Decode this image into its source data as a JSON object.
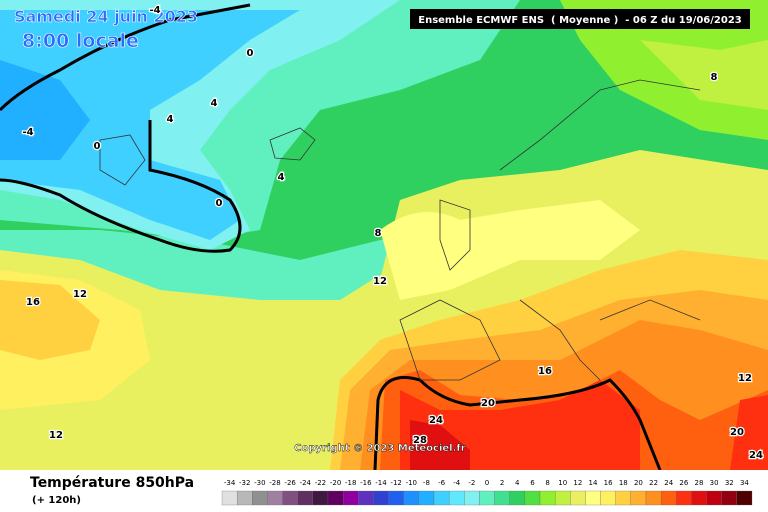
{
  "header": {
    "date": "Samedi 24 juin 2023",
    "time": "8:00 locale",
    "model": "Ensemble ECMWF ENS  ( Moyenne )  - 06 Z du 19/06/2023"
  },
  "copyright": "Copyright © 2023 Meteociel.fr",
  "footer": {
    "title": "Température 850hPa",
    "lead": "(+ 120h)"
  },
  "contour_labels": [
    -4,
    -4,
    0,
    0,
    0,
    4,
    4,
    4,
    8,
    8,
    12,
    12,
    12,
    12,
    16,
    16,
    20,
    20,
    24,
    24,
    28
  ],
  "legend": {
    "ticks": [
      -34,
      -32,
      -30,
      -28,
      -26,
      -24,
      -22,
      -20,
      -18,
      -16,
      -14,
      -12,
      -10,
      -8,
      -6,
      -4,
      -2,
      0,
      2,
      4,
      6,
      8,
      10,
      12,
      14,
      16,
      18,
      20,
      22,
      24,
      26,
      28,
      30,
      32,
      34
    ],
    "colors": [
      "#e0e0e0",
      "#b8b8b8",
      "#909090",
      "#a080a0",
      "#805080",
      "#603060",
      "#401840",
      "#600060",
      "#9000a0",
      "#6030c0",
      "#3040d0",
      "#2060f0",
      "#2090ff",
      "#20b0ff",
      "#40d0ff",
      "#60e8ff",
      "#80f0f0",
      "#60f0c0",
      "#40e090",
      "#30d060",
      "#50e040",
      "#90f030",
      "#c0f040",
      "#e8f060",
      "#ffff80",
      "#fff060",
      "#ffd040",
      "#ffb030",
      "#ff9020",
      "#ff6010",
      "#ff3010",
      "#e01010",
      "#c00010",
      "#900010",
      "#500000"
    ]
  }
}
